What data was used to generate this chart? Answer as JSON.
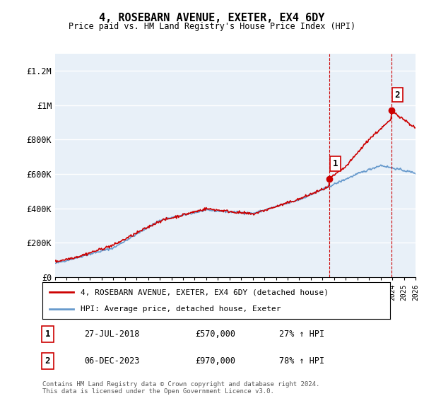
{
  "title": "4, ROSEBARN AVENUE, EXETER, EX4 6DY",
  "subtitle": "Price paid vs. HM Land Registry's House Price Index (HPI)",
  "ylabel_ticks": [
    "£0",
    "£200K",
    "£400K",
    "£600K",
    "£800K",
    "£1M",
    "£1.2M"
  ],
  "ytick_vals": [
    0,
    200000,
    400000,
    600000,
    800000,
    1000000,
    1200000
  ],
  "ylim": [
    0,
    1300000
  ],
  "xlim_start": 1995,
  "xlim_end": 2026,
  "sale1_year": 2018.57,
  "sale1_price": 570000,
  "sale1_label": "27-JUL-2018",
  "sale1_price_str": "£570,000",
  "sale1_pct": "27% ↑ HPI",
  "sale2_year": 2023.92,
  "sale2_price": 970000,
  "sale2_label": "06-DEC-2023",
  "sale2_price_str": "£970,000",
  "sale2_pct": "78% ↑ HPI",
  "legend_line1": "4, ROSEBARN AVENUE, EXETER, EX4 6DY (detached house)",
  "legend_line2": "HPI: Average price, detached house, Exeter",
  "footer": "Contains HM Land Registry data © Crown copyright and database right 2024.\nThis data is licensed under the Open Government Licence v3.0.",
  "line_color_red": "#cc0000",
  "line_color_blue": "#6699cc",
  "bg_color": "#e8f0f8",
  "grid_color": "#ffffff",
  "marker_dot_color": "#cc0000",
  "vline_color": "#cc0000"
}
